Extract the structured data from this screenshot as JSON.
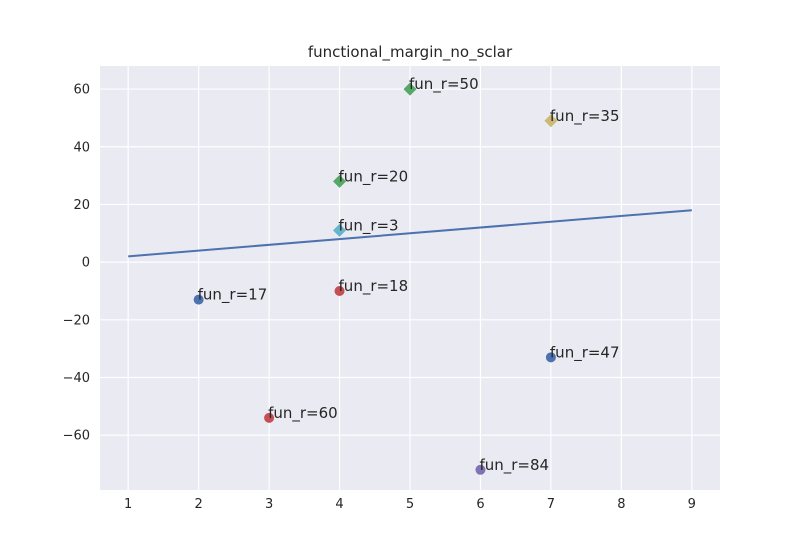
{
  "chart_data": {
    "type": "scatter",
    "title": "functional_margin_no_sclar",
    "xlabel": "",
    "ylabel": "",
    "xlim": [
      0.6,
      9.4
    ],
    "ylim": [
      -79,
      68
    ],
    "x_ticks": [
      1,
      2,
      3,
      4,
      5,
      6,
      7,
      8,
      9
    ],
    "y_ticks": [
      -60,
      -40,
      -20,
      0,
      20,
      40,
      60
    ],
    "grid": true,
    "background": "#EAEAF2",
    "points": [
      {
        "x": 5,
        "y": 60,
        "label": "fun_r=50",
        "marker": "diamond",
        "color": "#55A868"
      },
      {
        "x": 7,
        "y": 49,
        "label": "fun_r=35",
        "marker": "diamond",
        "color": "#CCB974"
      },
      {
        "x": 4,
        "y": 28,
        "label": "fun_r=20",
        "marker": "diamond",
        "color": "#55A868"
      },
      {
        "x": 4,
        "y": 11,
        "label": "fun_r=3",
        "marker": "diamond",
        "color": "#64B5CD"
      },
      {
        "x": 4,
        "y": -10,
        "label": "fun_r=18",
        "marker": "circle",
        "color": "#C44E52"
      },
      {
        "x": 2,
        "y": -13,
        "label": "fun_r=17",
        "marker": "circle",
        "color": "#4C72B0"
      },
      {
        "x": 7,
        "y": -33,
        "label": "fun_r=47",
        "marker": "circle",
        "color": "#4C72B0"
      },
      {
        "x": 3,
        "y": -54,
        "label": "fun_r=60",
        "marker": "circle",
        "color": "#C44E52"
      },
      {
        "x": 6,
        "y": -72,
        "label": "fun_r=84",
        "marker": "circle",
        "color": "#8172B2"
      }
    ],
    "line": {
      "x": [
        1,
        9
      ],
      "y": [
        2,
        18
      ],
      "color": "#4C72B0"
    }
  }
}
